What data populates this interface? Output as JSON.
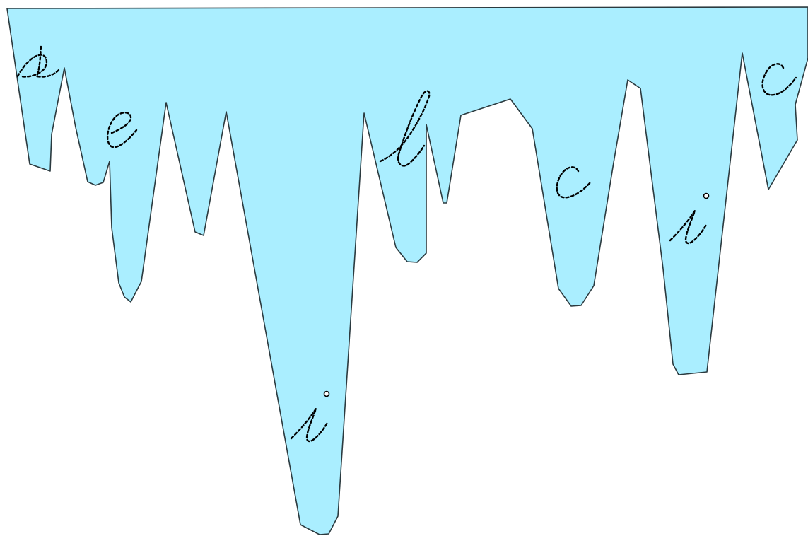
{
  "colors": {
    "ice_fill": "#aaeeff",
    "ice_outline": "#2b3a3f",
    "trace_stroke": "#000000",
    "background": "#ffffff"
  },
  "traced_letters": [
    "s",
    "e",
    "i",
    "l",
    "c",
    "i",
    "c"
  ]
}
